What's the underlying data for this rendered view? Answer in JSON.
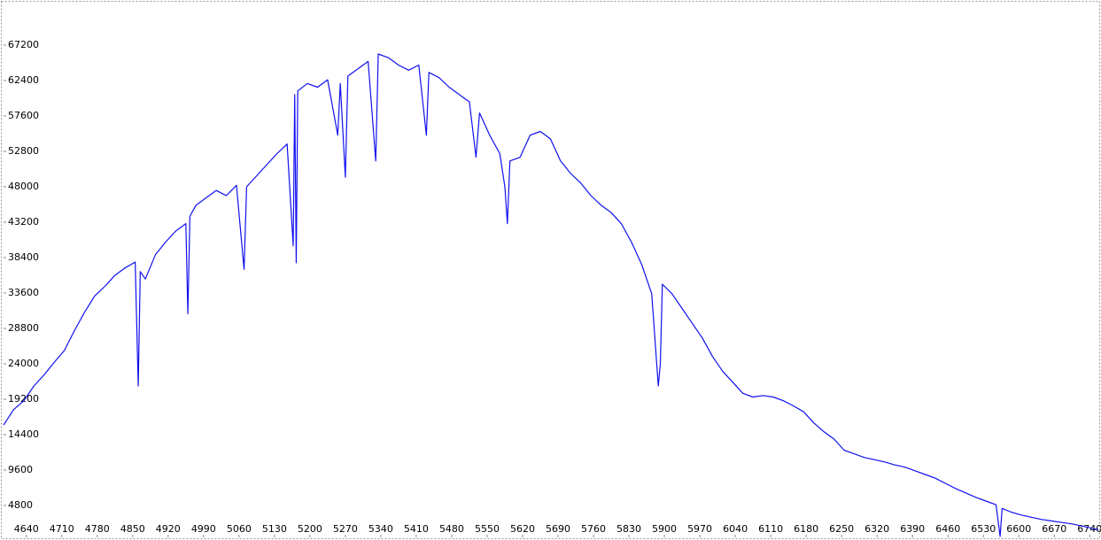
{
  "chart_data": {
    "type": "line",
    "x": [
      4595,
      4615,
      4635,
      4655,
      4675,
      4695,
      4715,
      4735,
      4755,
      4775,
      4795,
      4815,
      4835,
      4855,
      4861,
      4865,
      4875,
      4895,
      4915,
      4935,
      4955,
      4959,
      4963,
      4975,
      4995,
      5015,
      5035,
      5055,
      5070,
      5075,
      5095,
      5115,
      5135,
      5155,
      5167,
      5170,
      5173,
      5176,
      5195,
      5215,
      5235,
      5255,
      5260,
      5270,
      5275,
      5295,
      5315,
      5330,
      5335,
      5355,
      5375,
      5395,
      5415,
      5430,
      5435,
      5455,
      5475,
      5495,
      5515,
      5528,
      5535,
      5555,
      5575,
      5585,
      5590,
      5595,
      5615,
      5635,
      5655,
      5675,
      5695,
      5715,
      5735,
      5755,
      5775,
      5795,
      5815,
      5835,
      5855,
      5875,
      5888,
      5892,
      5896,
      5915,
      5935,
      5955,
      5975,
      5995,
      6015,
      6035,
      6055,
      6075,
      6095,
      6115,
      6135,
      6155,
      6175,
      6195,
      6215,
      6235,
      6255,
      6275,
      6295,
      6315,
      6335,
      6355,
      6375,
      6395,
      6415,
      6435,
      6455,
      6475,
      6495,
      6515,
      6535,
      6555,
      6563,
      6567,
      6585,
      6605,
      6625,
      6645,
      6665,
      6685,
      6705,
      6725,
      6745,
      6757
    ],
    "series": [
      {
        "color": "#1010f0",
        "values": [
          15700,
          17800,
          19000,
          21000,
          22500,
          24200,
          25800,
          28500,
          31000,
          33200,
          34500,
          36000,
          37000,
          37800,
          21000,
          36500,
          35500,
          38800,
          40500,
          42000,
          43000,
          30800,
          44000,
          45500,
          46500,
          47500,
          46800,
          48200,
          36800,
          48000,
          49500,
          51000,
          52500,
          53800,
          40000,
          60500,
          37700,
          61000,
          62000,
          61500,
          62500,
          55000,
          62000,
          49300,
          63000,
          64000,
          65000,
          51500,
          66000,
          65500,
          64500,
          63800,
          64500,
          55000,
          63500,
          62800,
          61500,
          60500,
          59500,
          52000,
          58000,
          55000,
          52500,
          48000,
          43000,
          51500,
          52000,
          55000,
          55500,
          54500,
          51500,
          49800,
          48500,
          46800,
          45500,
          44500,
          43000,
          40500,
          37500,
          33500,
          21000,
          24000,
          34800,
          33500,
          31500,
          29500,
          27500,
          25000,
          23000,
          21500,
          20000,
          19500,
          19700,
          19500,
          19000,
          18300,
          17500,
          16000,
          14800,
          13800,
          12300,
          11800,
          11300,
          11000,
          10700,
          10300,
          10000,
          9500,
          9000,
          8500,
          7800,
          7100,
          6500,
          5900,
          5400,
          4900,
          600,
          4400,
          3900,
          3500,
          3200,
          2900,
          2700,
          2500,
          2300,
          2000,
          1700,
          1500
        ]
      }
    ],
    "xlim": [
      4595,
      6757
    ],
    "ylim": [
      480,
      73080
    ],
    "xticks": [
      4640,
      4710,
      4780,
      4850,
      4920,
      4990,
      5060,
      5130,
      5200,
      5270,
      5340,
      5410,
      5480,
      5550,
      5620,
      5690,
      5760,
      5830,
      5900,
      5970,
      6040,
      6110,
      6180,
      6250,
      6320,
      6390,
      6460,
      6530,
      6600,
      6670,
      6740
    ],
    "yticks": [
      4800,
      9600,
      14400,
      19200,
      24000,
      28800,
      33600,
      38400,
      43200,
      48000,
      52800,
      57600,
      62400,
      67200
    ],
    "grid": false
  }
}
